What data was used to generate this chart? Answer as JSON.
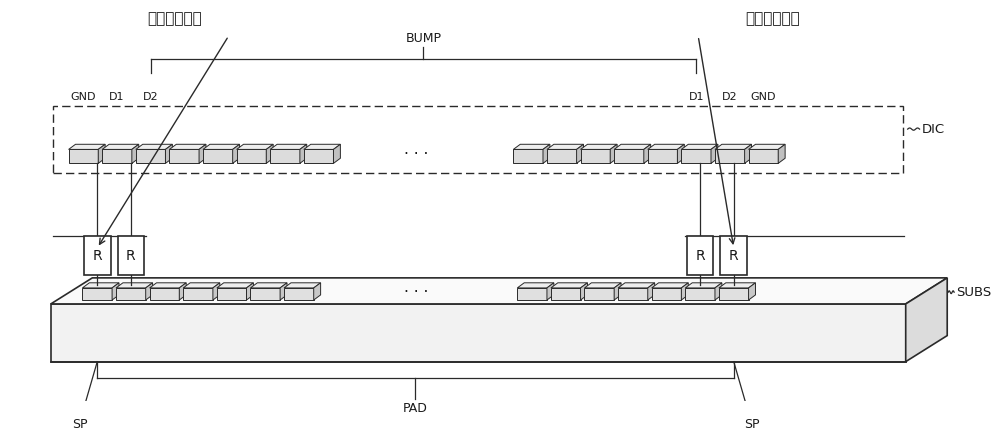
{
  "bg_color": "#ffffff",
  "text_color": "#1a1a1a",
  "line_color": "#2a2a2a",
  "label_left": "接合电阻测量",
  "label_right": "接合电阻测量",
  "label_dic": "DIC",
  "label_subs": "SUBS",
  "label_bump": "BUMP",
  "label_gnd_left": "GND",
  "label_d1_left": "D1",
  "label_d2_left": "D2",
  "label_d1_right": "D1",
  "label_d2_right": "D2",
  "label_gnd_right": "GND",
  "label_sp_left": "SP",
  "label_pad": "PAD",
  "label_sp_right": "SP",
  "label_r": "R",
  "label_dots": "· · ·"
}
